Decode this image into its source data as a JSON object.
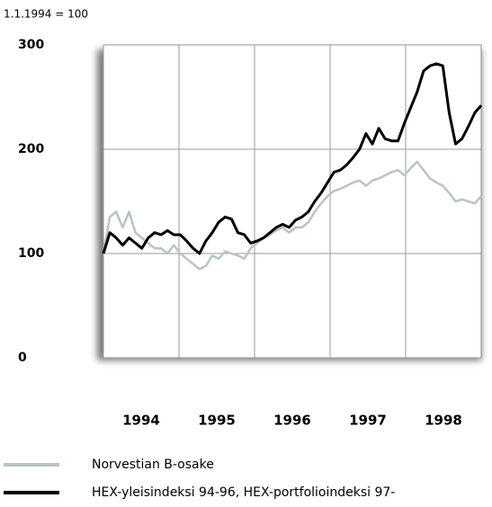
{
  "chart_data": {
    "type": "line",
    "subtitle": "1.1.1994 = 100",
    "xlim": [
      1994,
      1999
    ],
    "xticks": [
      1994,
      1995,
      1996,
      1997,
      1998
    ],
    "ylim": [
      0,
      300
    ],
    "yticks": [
      0,
      100,
      200,
      300
    ],
    "grid": true,
    "legend": "bottom",
    "series": [
      {
        "name": "Norvestian B-osake",
        "color": "#b9c3c8",
        "values": [
          100,
          135,
          140,
          125,
          140,
          120,
          115,
          110,
          105,
          105,
          100,
          108,
          100,
          95,
          90,
          85,
          88,
          98,
          95,
          102,
          100,
          98,
          95,
          105,
          110,
          115,
          118,
          122,
          125,
          120,
          125,
          125,
          130,
          140,
          148,
          155,
          160,
          162,
          165,
          168,
          170,
          165,
          170,
          172,
          175,
          178,
          180,
          175,
          182,
          188,
          180,
          172,
          168,
          165,
          158,
          150,
          152,
          150,
          148,
          155
        ]
      },
      {
        "name": "HEX-yleisindeksi 94-96, HEX-portfolioindeksi 97-",
        "color": "#000000",
        "values": [
          100,
          120,
          115,
          108,
          115,
          110,
          105,
          115,
          120,
          118,
          122,
          118,
          118,
          112,
          105,
          100,
          112,
          120,
          130,
          135,
          133,
          120,
          118,
          110,
          112,
          115,
          120,
          125,
          128,
          125,
          132,
          135,
          140,
          150,
          158,
          168,
          178,
          180,
          185,
          192,
          200,
          215,
          205,
          220,
          210,
          208,
          208,
          225,
          240,
          255,
          275,
          280,
          282,
          280,
          235,
          205,
          210,
          222,
          235,
          242
        ]
      }
    ]
  }
}
